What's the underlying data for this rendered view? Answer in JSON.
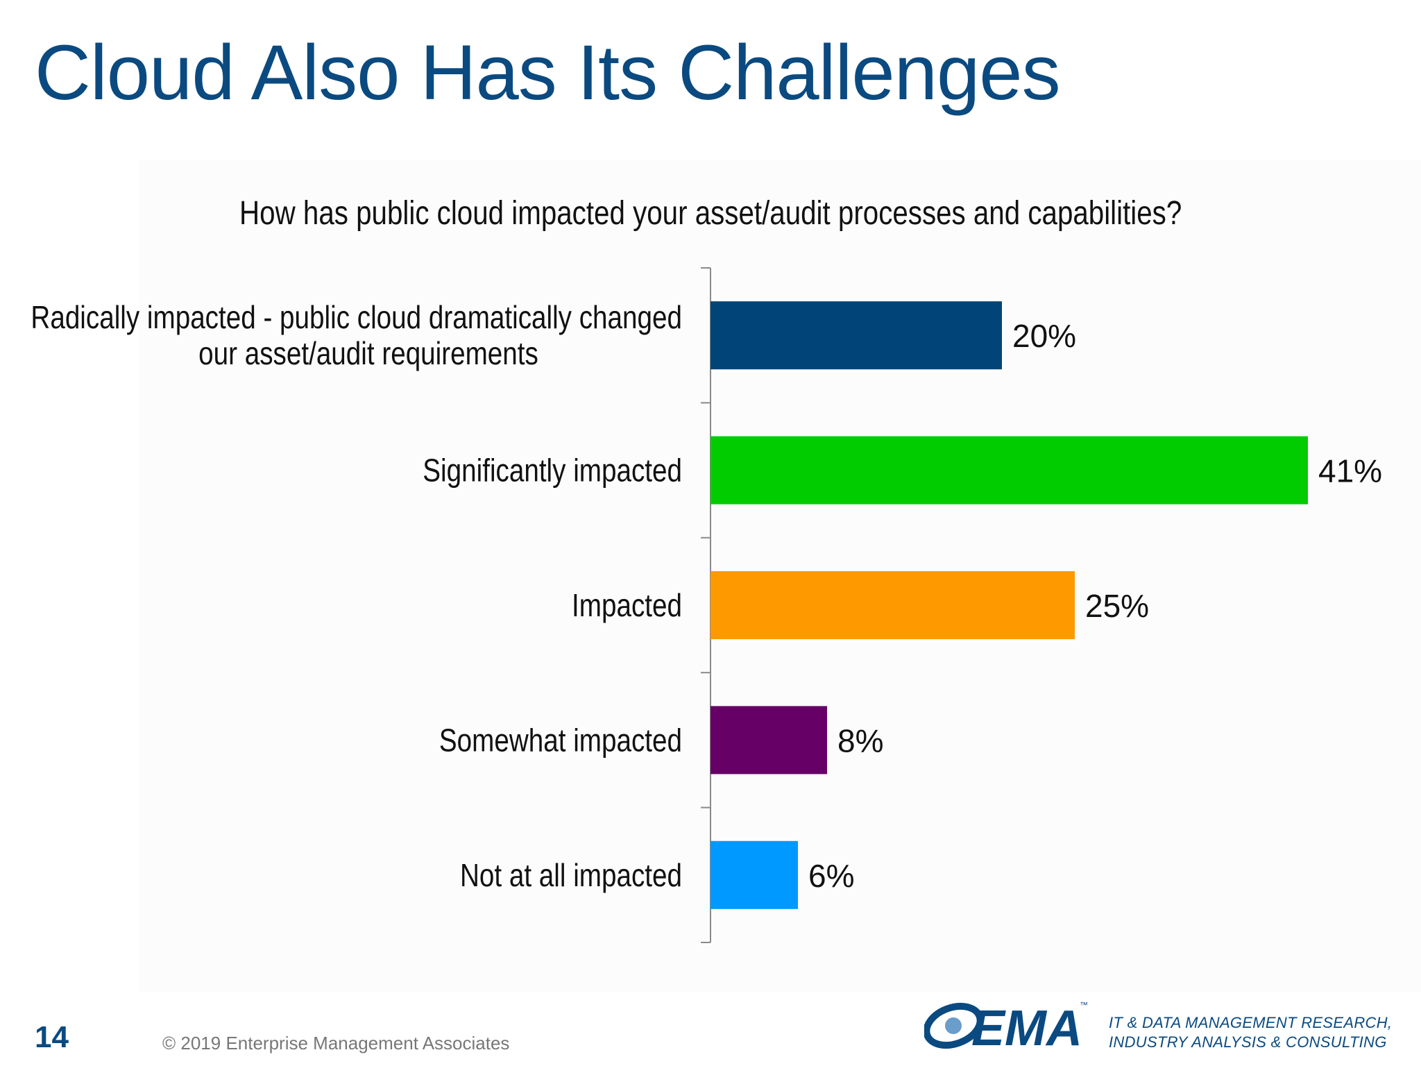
{
  "slide": {
    "title": "Cloud Also Has Its Challenges",
    "page_number": "14",
    "copyright": "© 2019 Enterprise Management Associates",
    "brand": {
      "logo_text": "EMA",
      "trademark": "™",
      "tagline_line1": "IT & DATA MANAGEMENT RESEARCH,",
      "tagline_line2": "INDUSTRY ANALYSIS & CONSULTING",
      "color": "#0a4a80"
    }
  },
  "chart_data": {
    "type": "bar",
    "orientation": "horizontal",
    "title": "How has public cloud impacted your asset/audit processes and capabilities?",
    "xlabel": "",
    "ylabel": "",
    "categories": [
      "Radically impacted - public cloud dramatically changed our asset/audit requirements",
      "Significantly impacted",
      "Impacted",
      "Somewhat impacted",
      "Not at all impacted"
    ],
    "category_lines": [
      [
        "Radically impacted - public cloud dramatically changed",
        "our asset/audit requirements"
      ],
      [
        "Significantly impacted"
      ],
      [
        "Impacted"
      ],
      [
        "Somewhat impacted"
      ],
      [
        "Not at all impacted"
      ]
    ],
    "values": [
      20,
      41,
      25,
      8,
      6
    ],
    "value_labels": [
      "20%",
      "41%",
      "25%",
      "8%",
      "6%"
    ],
    "colors": [
      "#004478",
      "#00cc00",
      "#ff9900",
      "#660066",
      "#0099ff"
    ],
    "unit": "%",
    "xlim": [
      0,
      41
    ],
    "grid": false,
    "legend": "none"
  }
}
